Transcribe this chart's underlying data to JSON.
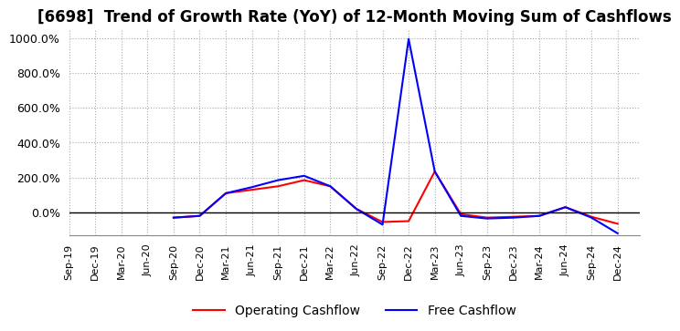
{
  "title": "[6698]  Trend of Growth Rate (YoY) of 12-Month Moving Sum of Cashflows",
  "title_fontsize": 12,
  "background_color": "#ffffff",
  "grid_color": "#aaaaaa",
  "x_labels": [
    "Sep-19",
    "Dec-19",
    "Mar-20",
    "Jun-20",
    "Sep-20",
    "Dec-20",
    "Mar-21",
    "Jun-21",
    "Sep-21",
    "Dec-21",
    "Mar-22",
    "Jun-22",
    "Sep-22",
    "Dec-22",
    "Mar-23",
    "Jun-23",
    "Sep-23",
    "Dec-23",
    "Mar-24",
    "Jun-24",
    "Sep-24",
    "Dec-24"
  ],
  "operating_cashflow": [
    null,
    null,
    null,
    null,
    -30,
    -20,
    110,
    130,
    150,
    185,
    150,
    20,
    -55,
    -50,
    235,
    -10,
    -30,
    -25,
    -20,
    30,
    -25,
    -65
  ],
  "free_cashflow": [
    null,
    null,
    null,
    null,
    -30,
    -20,
    110,
    145,
    185,
    210,
    150,
    20,
    -70,
    995,
    235,
    -20,
    -35,
    -30,
    -20,
    30,
    -30,
    -120
  ],
  "ylim": [
    -130,
    1050
  ],
  "yticks": [
    0,
    200,
    400,
    600,
    800,
    1000
  ],
  "operating_color": "#ff0000",
  "free_color": "#0000ff",
  "legend_labels": [
    "Operating Cashflow",
    "Free Cashflow"
  ]
}
